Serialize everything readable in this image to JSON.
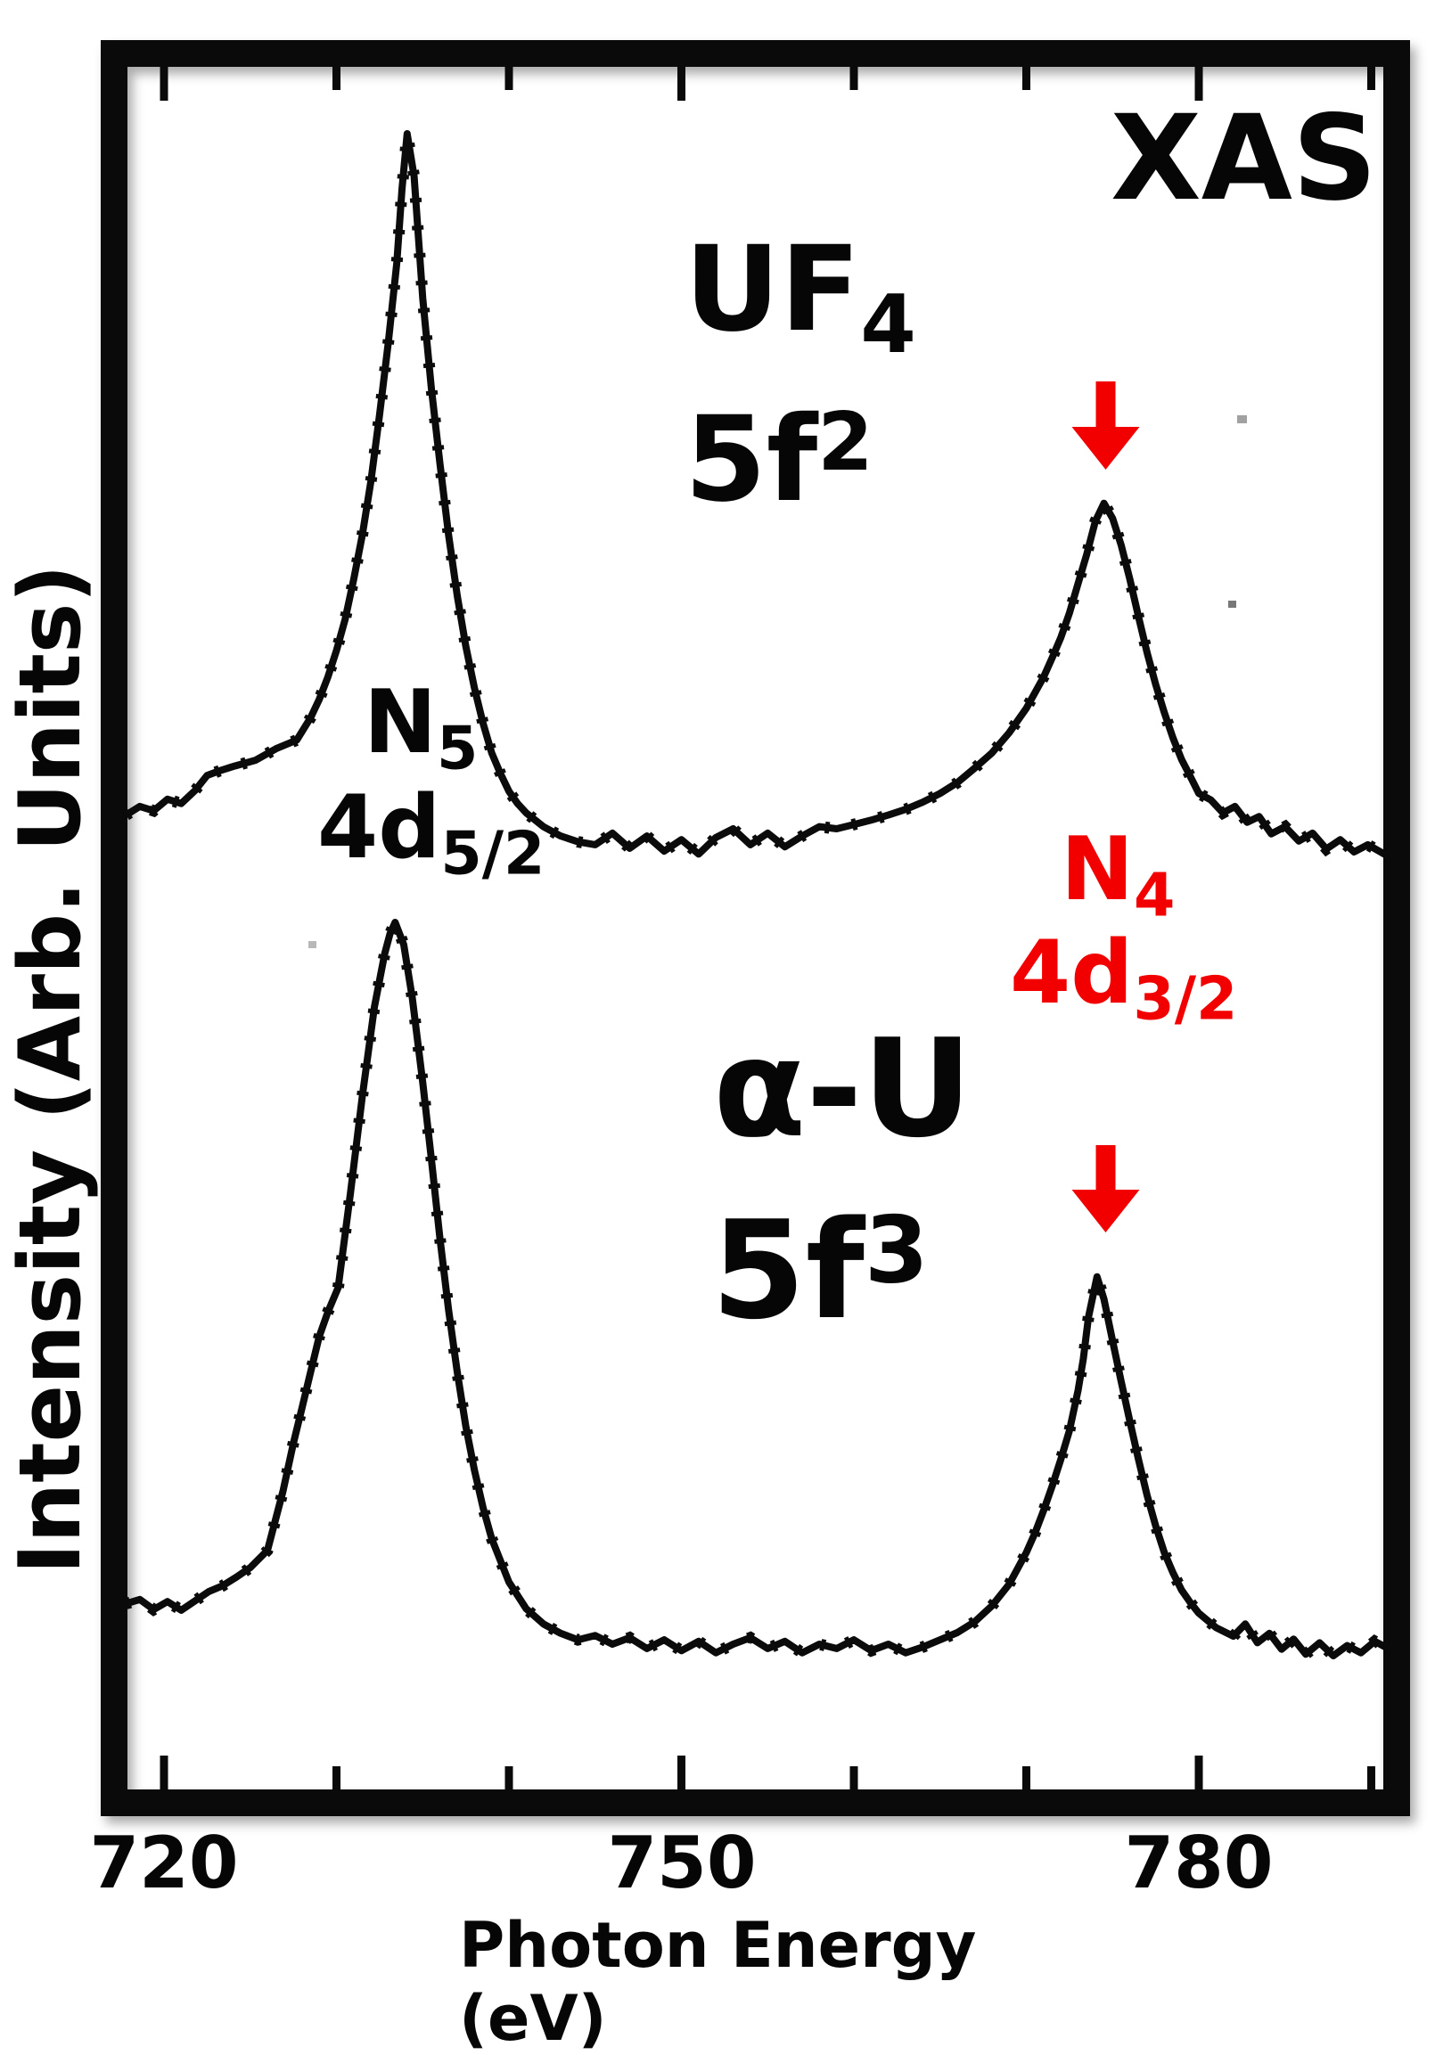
{
  "labels": {
    "technique": "XAS",
    "uf4": {
      "main": "UF",
      "sub": "4"
    },
    "f2": {
      "main": "5f",
      "sup": "2"
    },
    "alpha_u": "α-U",
    "f3": {
      "main": "5f",
      "sup": "3"
    },
    "n5": {
      "main": "N",
      "sub": "5"
    },
    "d52": {
      "main": "4d",
      "sub": "5/2"
    },
    "n4": {
      "main": "N",
      "sub": "4"
    },
    "d32": {
      "main": "4d",
      "sub": "3/2"
    }
  },
  "accent_red": "#f20000",
  "chart_data": {
    "type": "line",
    "title": "XAS",
    "xlabel": "Photon Energy (eV)",
    "ylabel": "Intensity (Arb. Units)",
    "x_range": [
      717.8,
      791
    ],
    "grid": false,
    "legend_position": "none",
    "x_ticks_major": [
      720,
      750,
      780
    ],
    "x_ticks_minor": [
      730,
      740,
      760,
      770,
      790
    ],
    "x_tick_labels": [
      "720",
      "750",
      "780"
    ],
    "annotations": {
      "peaks": [
        {
          "label": "N5 4d5/2",
          "uf4_ev": 734.1,
          "alpha_u_ev": 733.4,
          "color": "#060606"
        },
        {
          "label": "N4 4d3/2",
          "uf4_ev": 774.5,
          "alpha_u_ev": 774.1,
          "color": "#f20000"
        }
      ],
      "arrows": [
        {
          "points_to_ev": 774.6,
          "color": "#f20000"
        },
        {
          "points_to_ev": 774.6,
          "color": "#f20000"
        }
      ]
    },
    "series": [
      {
        "name": "UF4 5f2",
        "points": [
          [
            717.8,
            0.056
          ],
          [
            718.6,
            0.068
          ],
          [
            719.4,
            0.062
          ],
          [
            720.2,
            0.078
          ],
          [
            721,
            0.072
          ],
          [
            721.8,
            0.09
          ],
          [
            722.5,
            0.111
          ],
          [
            723.3,
            0.118
          ],
          [
            724.1,
            0.124
          ],
          [
            725.3,
            0.132
          ],
          [
            726.5,
            0.148
          ],
          [
            727.7,
            0.16
          ],
          [
            728.5,
            0.191
          ],
          [
            729,
            0.216
          ],
          [
            729.5,
            0.247
          ],
          [
            730,
            0.284
          ],
          [
            730.5,
            0.327
          ],
          [
            731,
            0.383
          ],
          [
            731.5,
            0.444
          ],
          [
            732,
            0.519
          ],
          [
            732.5,
            0.611
          ],
          [
            733,
            0.71
          ],
          [
            733.5,
            0.821
          ],
          [
            733.8,
            0.923
          ],
          [
            734.1,
            1.0
          ],
          [
            734.5,
            0.941
          ],
          [
            735,
            0.772
          ],
          [
            735.5,
            0.648
          ],
          [
            736,
            0.543
          ],
          [
            736.5,
            0.444
          ],
          [
            737,
            0.36
          ],
          [
            737.5,
            0.29
          ],
          [
            738,
            0.232
          ],
          [
            738.5,
            0.183
          ],
          [
            739,
            0.142
          ],
          [
            739.5,
            0.114
          ],
          [
            740,
            0.089
          ],
          [
            740.5,
            0.072
          ],
          [
            741,
            0.059
          ],
          [
            742,
            0.04
          ],
          [
            743,
            0.027
          ],
          [
            744,
            0.019
          ],
          [
            745,
            0.015
          ],
          [
            746,
            0.031
          ],
          [
            747,
            0.01
          ],
          [
            748,
            0.027
          ],
          [
            749,
            0.006
          ],
          [
            750,
            0.022
          ],
          [
            751,
            0.002
          ],
          [
            752,
            0.025
          ],
          [
            753,
            0.037
          ],
          [
            754,
            0.015
          ],
          [
            755,
            0.031
          ],
          [
            756,
            0.012
          ],
          [
            757,
            0.027
          ],
          [
            758,
            0.04
          ],
          [
            759,
            0.037
          ],
          [
            760,
            0.043
          ],
          [
            761,
            0.049
          ],
          [
            762,
            0.056
          ],
          [
            763,
            0.064
          ],
          [
            764,
            0.074
          ],
          [
            765,
            0.086
          ],
          [
            766,
            0.101
          ],
          [
            767,
            0.121
          ],
          [
            768,
            0.142
          ],
          [
            769,
            0.17
          ],
          [
            770,
            0.204
          ],
          [
            771,
            0.247
          ],
          [
            771.5,
            0.274
          ],
          [
            772,
            0.302
          ],
          [
            772.5,
            0.336
          ],
          [
            773,
            0.377
          ],
          [
            773.5,
            0.417
          ],
          [
            774,
            0.463
          ],
          [
            774.5,
            0.488
          ],
          [
            775,
            0.467
          ],
          [
            775.5,
            0.43
          ],
          [
            776,
            0.383
          ],
          [
            776.5,
            0.331
          ],
          [
            777,
            0.281
          ],
          [
            777.5,
            0.237
          ],
          [
            778,
            0.198
          ],
          [
            778.5,
            0.163
          ],
          [
            779,
            0.133
          ],
          [
            779.5,
            0.11
          ],
          [
            780,
            0.086
          ],
          [
            780.7,
            0.077
          ],
          [
            781.4,
            0.059
          ],
          [
            782.1,
            0.068
          ],
          [
            782.8,
            0.046
          ],
          [
            783.5,
            0.054
          ],
          [
            784.2,
            0.03
          ],
          [
            785,
            0.04
          ],
          [
            785.8,
            0.02
          ],
          [
            786.6,
            0.031
          ],
          [
            787.4,
            0.009
          ],
          [
            788.2,
            0.022
          ],
          [
            789,
            0.005
          ],
          [
            789.8,
            0.015
          ],
          [
            790.9,
            0.0
          ]
        ]
      },
      {
        "name": "α-U 5f3",
        "points": [
          [
            717.8,
            0.056
          ],
          [
            718.6,
            0.062
          ],
          [
            719.4,
            0.048
          ],
          [
            720.2,
            0.059
          ],
          [
            721,
            0.047
          ],
          [
            721.8,
            0.06
          ],
          [
            722.6,
            0.073
          ],
          [
            723.4,
            0.081
          ],
          [
            724.2,
            0.093
          ],
          [
            725,
            0.106
          ],
          [
            726,
            0.13
          ],
          [
            726.9,
            0.212
          ],
          [
            727.5,
            0.278
          ],
          [
            728,
            0.327
          ],
          [
            728.5,
            0.377
          ],
          [
            729,
            0.426
          ],
          [
            729.5,
            0.46
          ],
          [
            730.1,
            0.494
          ],
          [
            730.8,
            0.623
          ],
          [
            731.5,
            0.759
          ],
          [
            732.2,
            0.883
          ],
          [
            732.8,
            0.957
          ],
          [
            733.1,
            0.984
          ],
          [
            733.4,
            1.0
          ],
          [
            733.9,
            0.969
          ],
          [
            734.4,
            0.895
          ],
          [
            735,
            0.778
          ],
          [
            735.5,
            0.673
          ],
          [
            736,
            0.562
          ],
          [
            736.5,
            0.463
          ],
          [
            737,
            0.377
          ],
          [
            737.5,
            0.302
          ],
          [
            738,
            0.241
          ],
          [
            738.5,
            0.189
          ],
          [
            739,
            0.146
          ],
          [
            740,
            0.086
          ],
          [
            741,
            0.049
          ],
          [
            742,
            0.028
          ],
          [
            743,
            0.015
          ],
          [
            744,
            0.006
          ],
          [
            745,
            0.012
          ],
          [
            746,
            0.0
          ],
          [
            747,
            0.009
          ],
          [
            748,
            -0.006
          ],
          [
            749,
            0.006
          ],
          [
            750,
            -0.009
          ],
          [
            751,
            0.004
          ],
          [
            752,
            -0.012
          ],
          [
            753,
            0.0
          ],
          [
            754,
            0.009
          ],
          [
            755,
            -0.006
          ],
          [
            756,
            0.004
          ],
          [
            757,
            -0.012
          ],
          [
            758,
            0.0
          ],
          [
            759,
            -0.006
          ],
          [
            760,
            0.006
          ],
          [
            761,
            -0.009
          ],
          [
            762,
            0.0
          ],
          [
            763,
            -0.012
          ],
          [
            764,
            -0.004
          ],
          [
            765,
            0.006
          ],
          [
            766,
            0.016
          ],
          [
            767,
            0.031
          ],
          [
            768,
            0.053
          ],
          [
            769,
            0.083
          ],
          [
            770,
            0.127
          ],
          [
            770.5,
            0.154
          ],
          [
            771,
            0.185
          ],
          [
            771.5,
            0.219
          ],
          [
            772,
            0.256
          ],
          [
            772.5,
            0.296
          ],
          [
            773,
            0.352
          ],
          [
            773.3,
            0.395
          ],
          [
            773.6,
            0.453
          ],
          [
            774.1,
            0.509
          ],
          [
            774.5,
            0.478
          ],
          [
            775,
            0.42
          ],
          [
            775.5,
            0.364
          ],
          [
            776,
            0.309
          ],
          [
            776.5,
            0.256
          ],
          [
            777,
            0.206
          ],
          [
            777.5,
            0.164
          ],
          [
            778,
            0.127
          ],
          [
            778.5,
            0.099
          ],
          [
            779,
            0.075
          ],
          [
            779.5,
            0.058
          ],
          [
            780,
            0.043
          ],
          [
            781,
            0.023
          ],
          [
            782,
            0.011
          ],
          [
            782.7,
            0.028
          ],
          [
            783.4,
            0.002
          ],
          [
            784.1,
            0.015
          ],
          [
            784.8,
            -0.007
          ],
          [
            785.5,
            0.007
          ],
          [
            786.2,
            -0.014
          ],
          [
            787,
            0.002
          ],
          [
            787.8,
            -0.016
          ],
          [
            788.6,
            -0.002
          ],
          [
            789.4,
            -0.012
          ],
          [
            790.2,
            0.004
          ],
          [
            790.9,
            -0.005
          ]
        ]
      }
    ]
  }
}
